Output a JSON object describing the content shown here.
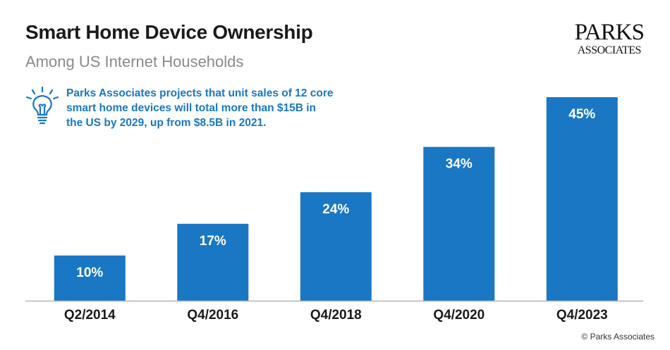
{
  "header": {
    "title": "Smart Home Device Ownership",
    "subtitle": "Among US Internet Households"
  },
  "logo": {
    "line1": "PARKS",
    "line2": "ASSOCIATES"
  },
  "insight": {
    "icon": "lightbulb-icon",
    "text": "Parks Associates projects that unit sales of 12 core smart home devices will total more than $15B in the US by 2029, up from $8.5B in 2021."
  },
  "colors": {
    "bar": "#1a77c4",
    "accent": "#1a77c4",
    "title": "#1a1a1a",
    "subtitle": "#8a8a8a",
    "axis": "#b5b5b5"
  },
  "chart_data": {
    "type": "bar",
    "title": "Smart Home Device Ownership",
    "subtitle": "Among US Internet Households",
    "categories": [
      "Q2/2014",
      "Q4/2016",
      "Q4/2018",
      "Q4/2020",
      "Q4/2023"
    ],
    "values": [
      10,
      17,
      24,
      34,
      45
    ],
    "value_labels": [
      "10%",
      "17%",
      "24%",
      "34%",
      "45%"
    ],
    "unit": "%",
    "ylim": [
      0,
      45
    ],
    "xlabel": "",
    "ylabel": "",
    "grid": false,
    "legend": "none"
  },
  "footer": {
    "copyright": "© Parks Associates"
  }
}
